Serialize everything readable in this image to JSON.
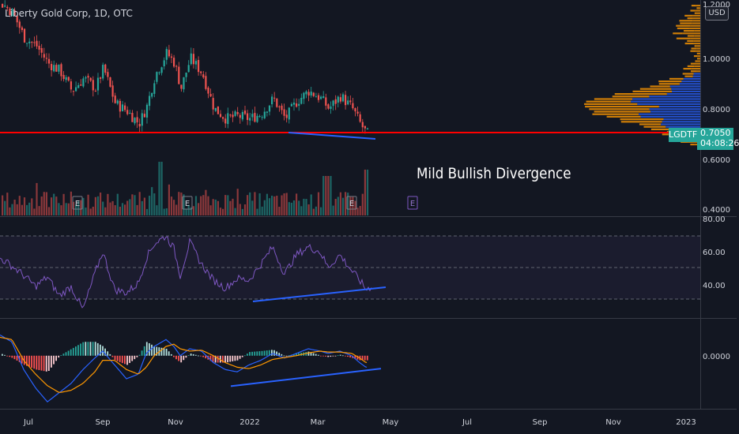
{
  "header": {
    "title": "Liberty Gold Corp, 1D, OTC",
    "currency": "USD"
  },
  "annotation": "Mild Bullish Divergence",
  "last_price": {
    "ticker": "LGDTF",
    "price": "0.7050",
    "countdown": "04:08:26"
  },
  "earnings_marker": "E",
  "colors": {
    "up": "#26a69a",
    "down": "#ef5350",
    "support": "#ff0000",
    "trend": "#2962ff",
    "rsi": "#7e57c2",
    "macd": "#2962ff",
    "signal": "#ff9800",
    "vp_up": "#2962ff",
    "vp_down": "#ff9800"
  },
  "chart_data": [
    {
      "type": "candlestick",
      "name": "price",
      "y_ticks": [
        "1.2000",
        "1.0000",
        "0.8000",
        "0.6000",
        "0.4000"
      ],
      "ylim": [
        0.38,
        1.23
      ],
      "x_ticks": [
        "Jul",
        "Sep",
        "Nov",
        "2022",
        "Mar",
        "May",
        "Jul",
        "Sep",
        "Nov",
        "2023"
      ],
      "support_level": 0.705,
      "close_path": [
        [
          0,
          1.22
        ],
        [
          15,
          1.18
        ],
        [
          30,
          1.08
        ],
        [
          45,
          1.05
        ],
        [
          60,
          0.98
        ],
        [
          75,
          0.95
        ],
        [
          90,
          0.87
        ],
        [
          105,
          0.92
        ],
        [
          120,
          0.88
        ],
        [
          130,
          0.96
        ],
        [
          145,
          0.82
        ],
        [
          160,
          0.79
        ],
        [
          175,
          0.74
        ],
        [
          185,
          0.81
        ],
        [
          195,
          0.93
        ],
        [
          210,
          1.02
        ],
        [
          220,
          0.98
        ],
        [
          228,
          0.88
        ],
        [
          240,
          1.0
        ],
        [
          255,
          0.94
        ],
        [
          270,
          0.8
        ],
        [
          285,
          0.76
        ],
        [
          300,
          0.77
        ],
        [
          315,
          0.76
        ],
        [
          330,
          0.78
        ],
        [
          345,
          0.84
        ],
        [
          360,
          0.76
        ],
        [
          375,
          0.83
        ],
        [
          390,
          0.87
        ],
        [
          405,
          0.84
        ],
        [
          415,
          0.8
        ],
        [
          430,
          0.85
        ],
        [
          445,
          0.8
        ],
        [
          455,
          0.74
        ],
        [
          463,
          0.7
        ]
      ],
      "divergence_line": {
        "from": [
          365,
          0.705
        ],
        "to": [
          475,
          0.68
        ]
      }
    },
    {
      "type": "bar",
      "name": "volume"
    },
    {
      "type": "line",
      "name": "RSI",
      "y_ticks": [
        "80.00",
        "60.00",
        "40.00"
      ],
      "ylim": [
        18,
        82
      ],
      "bands": [
        30,
        50,
        70
      ],
      "values": [
        [
          0,
          56
        ],
        [
          15,
          51
        ],
        [
          30,
          45
        ],
        [
          45,
          38
        ],
        [
          60,
          44
        ],
        [
          75,
          32
        ],
        [
          90,
          38
        ],
        [
          105,
          23
        ],
        [
          120,
          46
        ],
        [
          130,
          60
        ],
        [
          145,
          36
        ],
        [
          160,
          34
        ],
        [
          175,
          40
        ],
        [
          185,
          56
        ],
        [
          195,
          65
        ],
        [
          210,
          70
        ],
        [
          220,
          62
        ],
        [
          228,
          45
        ],
        [
          240,
          66
        ],
        [
          255,
          52
        ],
        [
          270,
          42
        ],
        [
          285,
          37
        ],
        [
          300,
          43
        ],
        [
          315,
          42
        ],
        [
          330,
          52
        ],
        [
          345,
          63
        ],
        [
          360,
          46
        ],
        [
          375,
          58
        ],
        [
          390,
          63
        ],
        [
          405,
          60
        ],
        [
          415,
          50
        ],
        [
          430,
          58
        ],
        [
          445,
          48
        ],
        [
          455,
          42
        ],
        [
          463,
          36
        ],
        [
          470,
          38
        ]
      ],
      "divergence_line": {
        "from": [
          320,
          28.5
        ],
        "to": [
          488,
          37.5
        ]
      }
    },
    {
      "type": "line",
      "name": "MACD",
      "y_ticks": [
        "0.0000"
      ],
      "ylim": [
        -0.115,
        0.08
      ],
      "macd": [
        [
          0,
          0.045
        ],
        [
          15,
          0.03
        ],
        [
          30,
          -0.03
        ],
        [
          45,
          -0.07
        ],
        [
          60,
          -0.1
        ],
        [
          75,
          -0.08
        ],
        [
          90,
          -0.06
        ],
        [
          105,
          -0.03
        ],
        [
          120,
          -0.005
        ],
        [
          130,
          0.01
        ],
        [
          145,
          -0.02
        ],
        [
          160,
          -0.05
        ],
        [
          175,
          -0.04
        ],
        [
          185,
          0.005
        ],
        [
          195,
          0.02
        ],
        [
          210,
          0.035
        ],
        [
          220,
          0.02
        ],
        [
          228,
          0.0
        ],
        [
          240,
          0.015
        ],
        [
          255,
          0.01
        ],
        [
          270,
          -0.015
        ],
        [
          285,
          -0.03
        ],
        [
          300,
          -0.035
        ],
        [
          315,
          -0.02
        ],
        [
          330,
          -0.01
        ],
        [
          345,
          0.005
        ],
        [
          360,
          -0.005
        ],
        [
          375,
          0.005
        ],
        [
          390,
          0.015
        ],
        [
          405,
          0.01
        ],
        [
          415,
          0.005
        ],
        [
          430,
          0.01
        ],
        [
          445,
          0.0
        ],
        [
          455,
          -0.015
        ],
        [
          463,
          -0.025
        ]
      ],
      "signal": [
        [
          0,
          0.04
        ],
        [
          15,
          0.035
        ],
        [
          30,
          -0.01
        ],
        [
          45,
          -0.04
        ],
        [
          60,
          -0.065
        ],
        [
          75,
          -0.08
        ],
        [
          90,
          -0.075
        ],
        [
          105,
          -0.06
        ],
        [
          120,
          -0.035
        ],
        [
          130,
          -0.01
        ],
        [
          145,
          -0.01
        ],
        [
          160,
          -0.03
        ],
        [
          175,
          -0.04
        ],
        [
          185,
          -0.025
        ],
        [
          195,
          0.0
        ],
        [
          210,
          0.02
        ],
        [
          220,
          0.025
        ],
        [
          228,
          0.015
        ],
        [
          240,
          0.01
        ],
        [
          255,
          0.012
        ],
        [
          270,
          0.0
        ],
        [
          285,
          -0.015
        ],
        [
          300,
          -0.025
        ],
        [
          315,
          -0.028
        ],
        [
          330,
          -0.02
        ],
        [
          345,
          -0.008
        ],
        [
          360,
          -0.004
        ],
        [
          375,
          0.0
        ],
        [
          390,
          0.006
        ],
        [
          405,
          0.01
        ],
        [
          415,
          0.008
        ],
        [
          430,
          0.008
        ],
        [
          445,
          0.005
        ],
        [
          455,
          -0.005
        ],
        [
          463,
          -0.015
        ]
      ],
      "divergence_line": {
        "from": [
          292,
          -0.066
        ],
        "to": [
          482,
          -0.028
        ]
      }
    }
  ]
}
